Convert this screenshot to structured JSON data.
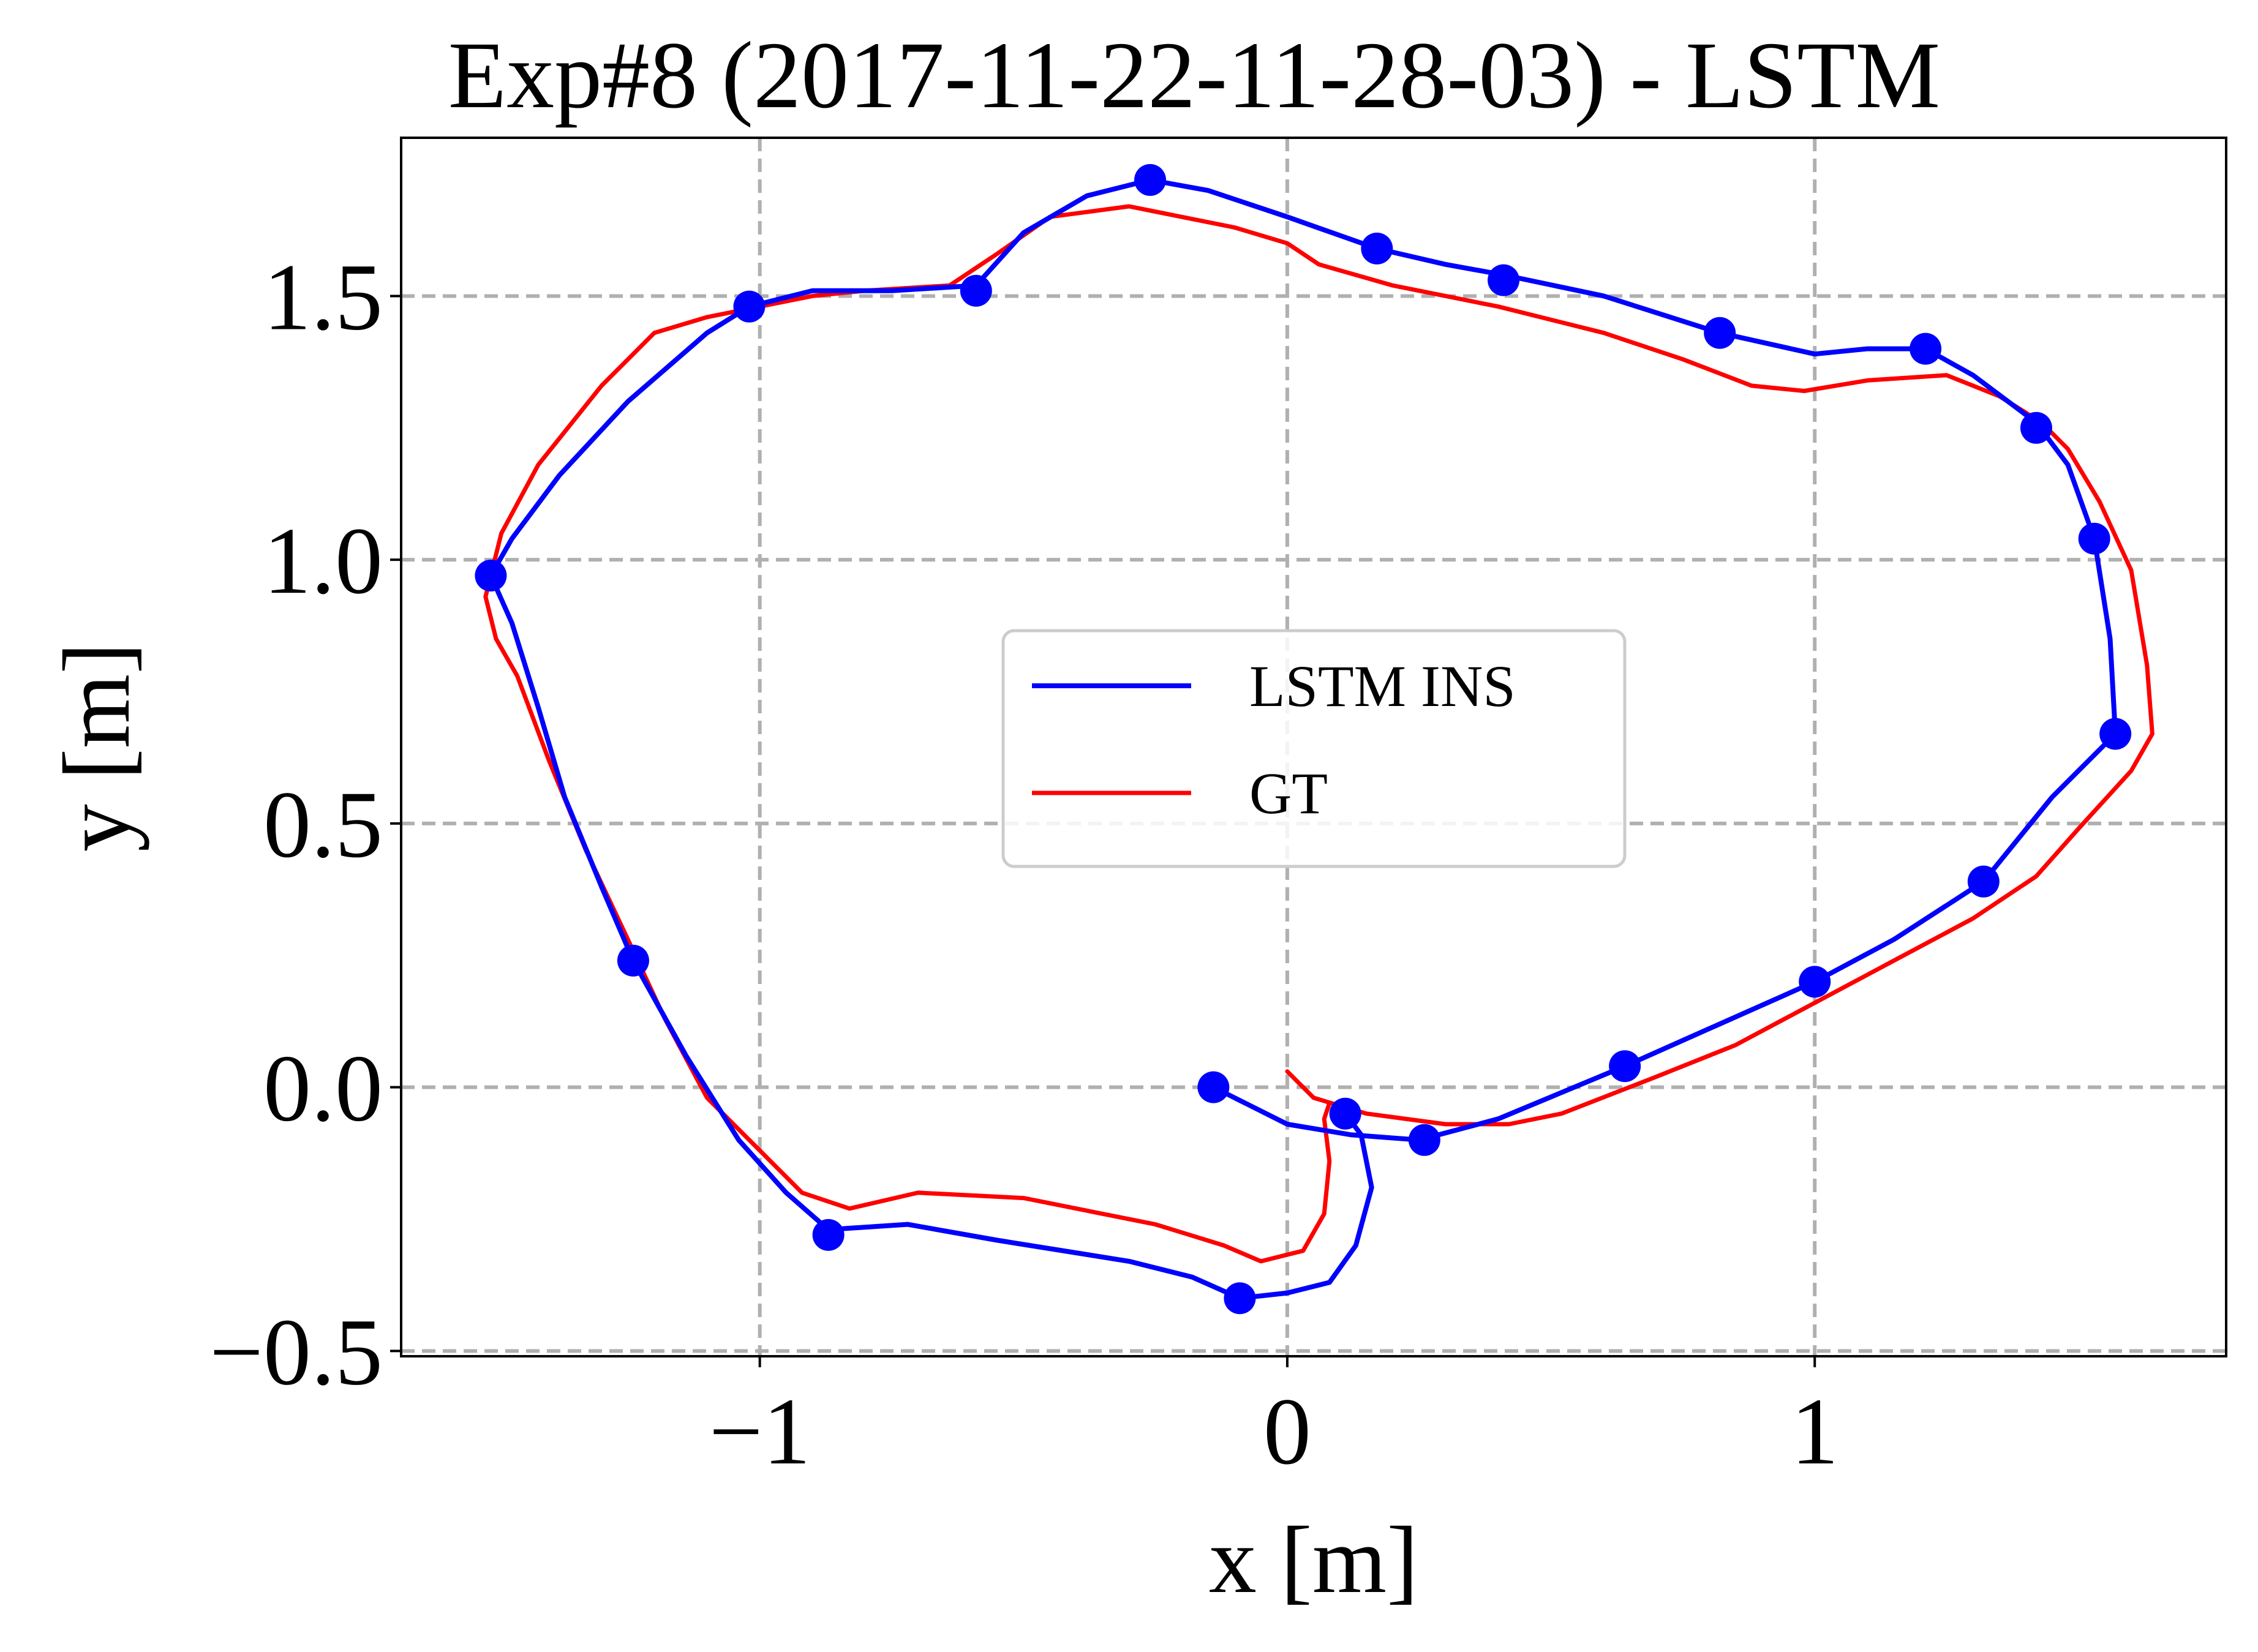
{
  "chart_data": {
    "type": "line",
    "title": "Exp#8 (2017-11-22-11-28-03) - LSTM",
    "xlabel": "x [m]",
    "ylabel": "y [m]",
    "xlim": [
      -1.68,
      1.78
    ],
    "ylim": [
      -0.51,
      1.8
    ],
    "xticks": [
      -1,
      0,
      1
    ],
    "xtick_labels": [
      "−1",
      "0",
      "1"
    ],
    "yticks": [
      -0.5,
      0.0,
      0.5,
      1.0,
      1.5
    ],
    "ytick_labels": [
      "−0.5",
      "0.0",
      "0.5",
      "1.0",
      "1.5"
    ],
    "grid": true,
    "legend_placement": "center",
    "series": [
      {
        "name": "LSTM INS",
        "color": "#0000ff",
        "marker": "circle",
        "points": [
          [
            -0.14,
            0.0
          ],
          [
            0.0,
            -0.07
          ],
          [
            0.12,
            -0.09
          ],
          [
            0.25,
            -0.1
          ],
          [
            0.4,
            -0.06
          ],
          [
            0.64,
            0.04
          ],
          [
            0.82,
            0.12
          ],
          [
            1.0,
            0.2
          ],
          [
            1.15,
            0.28
          ],
          [
            1.32,
            0.39
          ],
          [
            1.45,
            0.55
          ],
          [
            1.57,
            0.67
          ],
          [
            1.56,
            0.85
          ],
          [
            1.53,
            1.04
          ],
          [
            1.48,
            1.18
          ],
          [
            1.42,
            1.26
          ],
          [
            1.3,
            1.35
          ],
          [
            1.21,
            1.4
          ],
          [
            1.1,
            1.4
          ],
          [
            1.0,
            1.39
          ],
          [
            0.82,
            1.43
          ],
          [
            0.6,
            1.5
          ],
          [
            0.41,
            1.54
          ],
          [
            0.3,
            1.56
          ],
          [
            0.17,
            1.59
          ],
          [
            0.0,
            1.65
          ],
          [
            -0.15,
            1.7
          ],
          [
            -0.26,
            1.72
          ],
          [
            -0.38,
            1.69
          ],
          [
            -0.5,
            1.62
          ],
          [
            -0.59,
            1.52
          ],
          [
            -0.75,
            1.51
          ],
          [
            -0.9,
            1.51
          ],
          [
            -1.02,
            1.48
          ],
          [
            -1.1,
            1.43
          ],
          [
            -1.25,
            1.3
          ],
          [
            -1.38,
            1.16
          ],
          [
            -1.47,
            1.04
          ],
          [
            -1.51,
            0.97
          ],
          [
            -1.47,
            0.88
          ],
          [
            -1.42,
            0.72
          ],
          [
            -1.37,
            0.55
          ],
          [
            -1.3,
            0.38
          ],
          [
            -1.24,
            0.24
          ],
          [
            -1.14,
            0.06
          ],
          [
            -1.04,
            -0.1
          ],
          [
            -0.95,
            -0.2
          ],
          [
            -0.87,
            -0.27
          ],
          [
            -0.72,
            -0.26
          ],
          [
            -0.55,
            -0.29
          ],
          [
            -0.3,
            -0.33
          ],
          [
            -0.18,
            -0.36
          ],
          [
            -0.09,
            -0.4
          ],
          [
            0.0,
            -0.39
          ],
          [
            0.08,
            -0.37
          ],
          [
            0.13,
            -0.3
          ],
          [
            0.16,
            -0.19
          ],
          [
            0.14,
            -0.09
          ],
          [
            0.11,
            -0.05
          ]
        ],
        "markers": [
          [
            -0.14,
            0.0
          ],
          [
            0.11,
            -0.05
          ],
          [
            0.26,
            -0.1
          ],
          [
            0.64,
            0.04
          ],
          [
            1.0,
            0.2
          ],
          [
            1.32,
            0.39
          ],
          [
            1.57,
            0.67
          ],
          [
            1.53,
            1.04
          ],
          [
            1.42,
            1.25
          ],
          [
            1.21,
            1.4
          ],
          [
            0.82,
            1.43
          ],
          [
            0.41,
            1.53
          ],
          [
            0.17,
            1.59
          ],
          [
            -0.26,
            1.72
          ],
          [
            -0.59,
            1.51
          ],
          [
            -1.02,
            1.48
          ],
          [
            -1.51,
            0.97
          ],
          [
            -1.24,
            0.24
          ],
          [
            -0.87,
            -0.28
          ],
          [
            -0.09,
            -0.4
          ]
        ]
      },
      {
        "name": "GT",
        "color": "#ff0000",
        "marker": "none",
        "points": [
          [
            0.0,
            0.03
          ],
          [
            0.05,
            -0.02
          ],
          [
            0.15,
            -0.05
          ],
          [
            0.3,
            -0.07
          ],
          [
            0.42,
            -0.07
          ],
          [
            0.52,
            -0.05
          ],
          [
            0.7,
            0.02
          ],
          [
            0.85,
            0.08
          ],
          [
            1.0,
            0.16
          ],
          [
            1.15,
            0.24
          ],
          [
            1.3,
            0.32
          ],
          [
            1.42,
            0.4
          ],
          [
            1.5,
            0.49
          ],
          [
            1.6,
            0.6
          ],
          [
            1.64,
            0.67
          ],
          [
            1.63,
            0.8
          ],
          [
            1.6,
            0.98
          ],
          [
            1.54,
            1.11
          ],
          [
            1.48,
            1.21
          ],
          [
            1.43,
            1.26
          ],
          [
            1.35,
            1.31
          ],
          [
            1.25,
            1.35
          ],
          [
            1.1,
            1.34
          ],
          [
            0.98,
            1.32
          ],
          [
            0.88,
            1.33
          ],
          [
            0.75,
            1.38
          ],
          [
            0.6,
            1.43
          ],
          [
            0.4,
            1.48
          ],
          [
            0.2,
            1.52
          ],
          [
            0.06,
            1.56
          ],
          [
            0.0,
            1.6
          ],
          [
            -0.1,
            1.63
          ],
          [
            -0.3,
            1.67
          ],
          [
            -0.45,
            1.65
          ],
          [
            -0.55,
            1.58
          ],
          [
            -0.64,
            1.52
          ],
          [
            -0.8,
            1.51
          ],
          [
            -0.9,
            1.5
          ],
          [
            -1.0,
            1.48
          ],
          [
            -1.1,
            1.46
          ],
          [
            -1.2,
            1.43
          ],
          [
            -1.3,
            1.33
          ],
          [
            -1.42,
            1.18
          ],
          [
            -1.49,
            1.05
          ],
          [
            -1.52,
            0.93
          ],
          [
            -1.5,
            0.85
          ],
          [
            -1.46,
            0.78
          ],
          [
            -1.4,
            0.62
          ],
          [
            -1.33,
            0.45
          ],
          [
            -1.25,
            0.28
          ],
          [
            -1.18,
            0.13
          ],
          [
            -1.1,
            -0.02
          ],
          [
            -1.0,
            -0.12
          ],
          [
            -0.92,
            -0.2
          ],
          [
            -0.83,
            -0.23
          ],
          [
            -0.7,
            -0.2
          ],
          [
            -0.5,
            -0.21
          ],
          [
            -0.25,
            -0.26
          ],
          [
            -0.12,
            -0.3
          ],
          [
            -0.05,
            -0.33
          ],
          [
            0.03,
            -0.31
          ],
          [
            0.07,
            -0.24
          ],
          [
            0.08,
            -0.14
          ],
          [
            0.07,
            -0.06
          ],
          [
            0.08,
            -0.03
          ]
        ]
      }
    ]
  }
}
